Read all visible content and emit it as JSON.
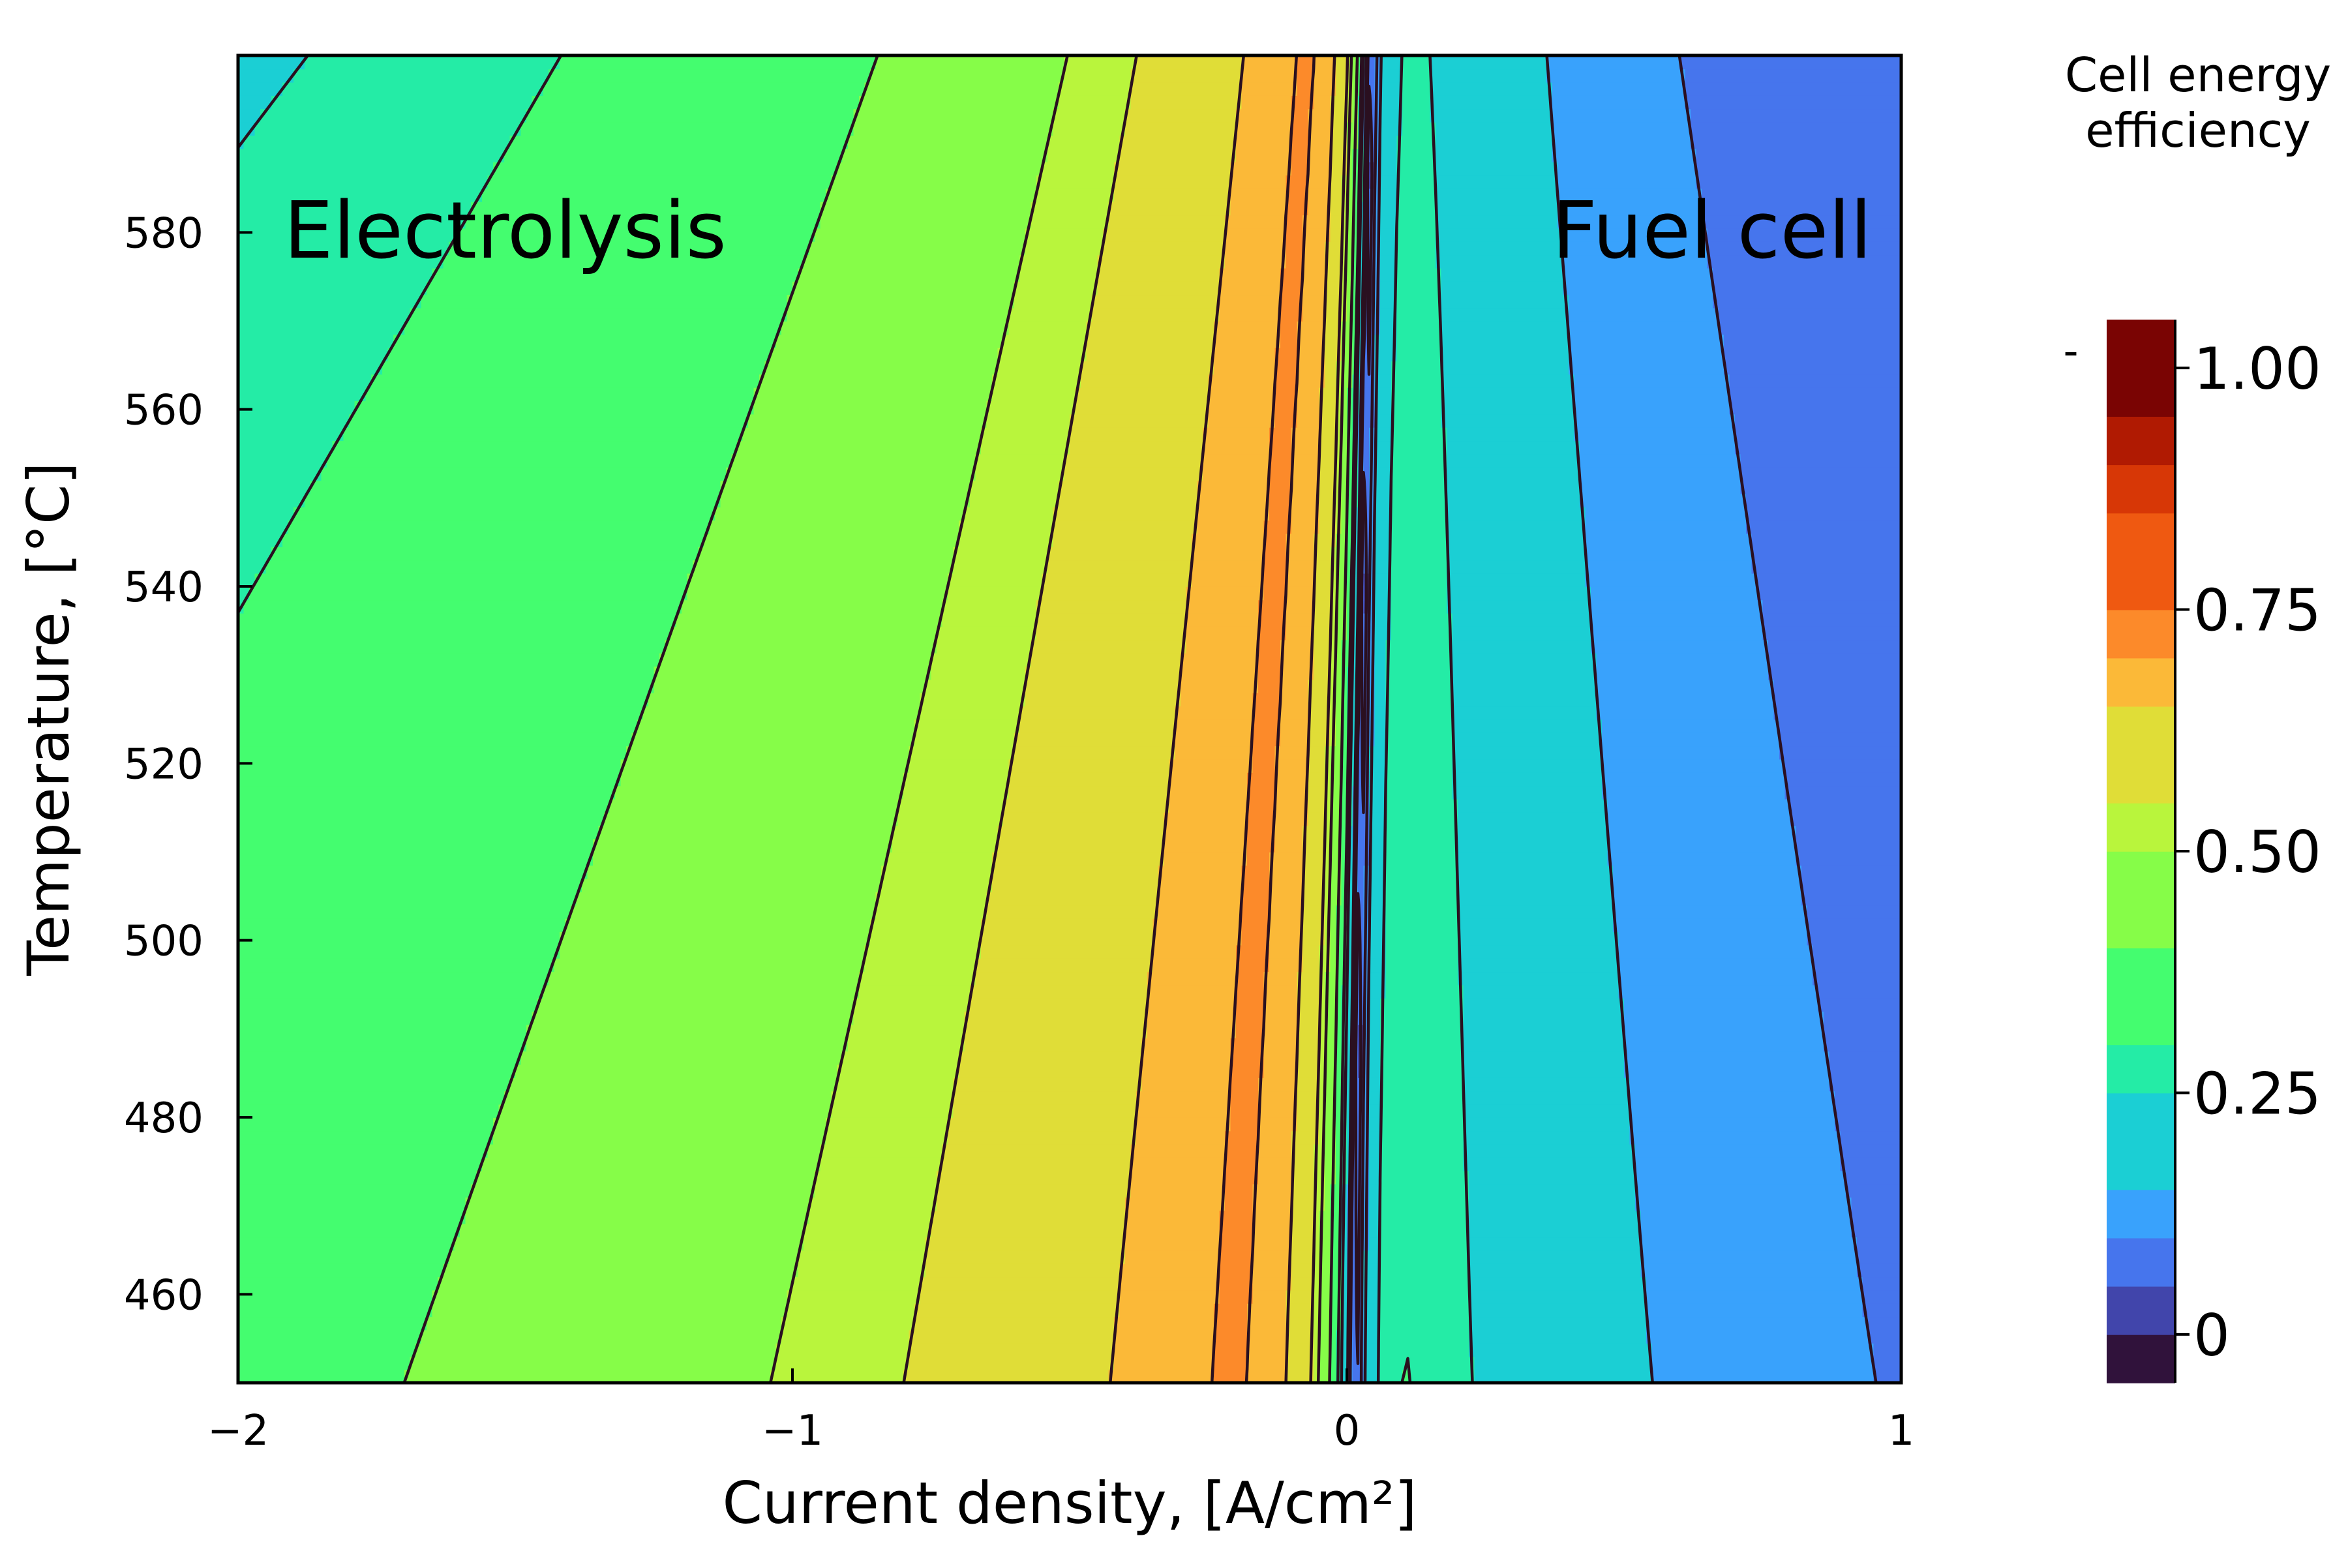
{
  "chart_data": {
    "type": "contour",
    "title": "",
    "xlabel": "Current density, [A/cm²]",
    "ylabel": "Temperature, [°C]",
    "xlim": [
      -2,
      1
    ],
    "ylim": [
      450,
      600
    ],
    "xticks": [
      -2,
      -1,
      0,
      1
    ],
    "xtick_labels": [
      "−2",
      "−1",
      "0",
      "1"
    ],
    "yticks": [
      460,
      480,
      500,
      520,
      540,
      560,
      580
    ],
    "ytick_labels": [
      "460",
      "480",
      "500",
      "520",
      "540",
      "560",
      "580"
    ],
    "annotations": [
      {
        "text": "Electrolysis",
        "x": -1.55,
        "y": 578
      },
      {
        "text": "Fuel cell",
        "x": 0.65,
        "y": 578
      }
    ],
    "colorbar": {
      "title": "Cell energy efficiency",
      "title_lines": [
        "Cell energy",
        "efficiency"
      ],
      "range": [
        -0.05,
        1.05
      ],
      "tick_values": [
        0,
        0.25,
        0.5,
        0.75,
        1.0
      ],
      "tick_labels": [
        "0",
        "0.25",
        "0.50",
        "0.75",
        "1.00"
      ],
      "marker_label": "-",
      "levels": [
        {
          "min": -0.05,
          "max": 0.0,
          "color": "#30123b"
        },
        {
          "min": 0.0,
          "max": 0.05,
          "color": "#4145ab"
        },
        {
          "min": 0.05,
          "max": 0.1,
          "color": "#4675ed"
        },
        {
          "min": 0.1,
          "max": 0.15,
          "color": "#39a2fc"
        },
        {
          "min": 0.15,
          "max": 0.25,
          "color": "#1bcfd4"
        },
        {
          "min": 0.25,
          "max": 0.3,
          "color": "#24eca6"
        },
        {
          "min": 0.3,
          "max": 0.4,
          "color": "#44fd6f"
        },
        {
          "min": 0.4,
          "max": 0.5,
          "color": "#86fd48"
        },
        {
          "min": 0.5,
          "max": 0.55,
          "color": "#b9f53c"
        },
        {
          "min": 0.55,
          "max": 0.65,
          "color": "#e0dd37"
        },
        {
          "min": 0.65,
          "max": 0.7,
          "color": "#fbb938"
        },
        {
          "min": 0.7,
          "max": 0.75,
          "color": "#fc8a2a"
        },
        {
          "min": 0.75,
          "max": 0.85,
          "color": "#ef5911"
        },
        {
          "min": 0.85,
          "max": 0.9,
          "color": "#d73706"
        },
        {
          "min": 0.9,
          "max": 0.95,
          "color": "#b01a02"
        },
        {
          "min": 0.95,
          "max": 1.05,
          "color": "#7a0403"
        }
      ]
    }
  }
}
